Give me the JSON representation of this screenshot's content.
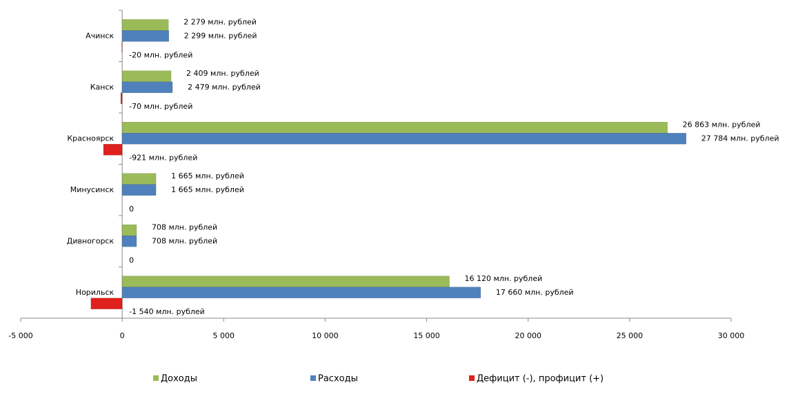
{
  "chart_data": {
    "type": "hbar",
    "categories": [
      "Ачинск",
      "Канск",
      "Красноярск",
      "Минусинск",
      "Дивногорск",
      "Норильск"
    ],
    "series": [
      {
        "name": "Доходы",
        "color": "#9bbb59",
        "values": [
          2279,
          2409,
          26863,
          1665,
          708,
          16120
        ],
        "value_labels": [
          "2 279 млн. рублей",
          "2 409  млн. рублей",
          "26 863 млн. рублей",
          "1 665 млн. рублей",
          "708 млн. рублей",
          "16 120 млн. рублей"
        ]
      },
      {
        "name": "Расходы",
        "color": "#4f81bd",
        "values": [
          2299,
          2479,
          27784,
          1665,
          708,
          17660
        ],
        "value_labels": [
          "2 299 млн. рублей",
          "2 479 млн. рублей",
          "27 784 млн. рублей",
          "1 665 млн. рублей",
          "708 млн. рублей",
          "17 660 млн. рублей"
        ]
      },
      {
        "name": "Дефицит (-), профицит (+)",
        "color": "#e0201c",
        "values": [
          -20,
          -70,
          -921,
          0,
          0,
          -1540
        ],
        "value_labels": [
          "-20 млн. рублей",
          "-70 млн. рублей",
          "-921 млн. рублей",
          "0",
          "0",
          "-1 540 млн. рублей"
        ]
      }
    ],
    "xlim": [
      -5000,
      30000
    ],
    "xticks": [
      {
        "value": -5000,
        "label": "-5 000"
      },
      0,
      {
        "value": 5000,
        "label": "5 000"
      },
      {
        "value": 10000,
        "label": "10 000"
      },
      {
        "value": 15000,
        "label": "15 000"
      },
      {
        "value": 20000,
        "label": "20 000"
      },
      {
        "value": 25000,
        "label": "25 000"
      },
      {
        "value": 30000,
        "label": "30 000"
      }
    ],
    "legend": "bottom"
  }
}
